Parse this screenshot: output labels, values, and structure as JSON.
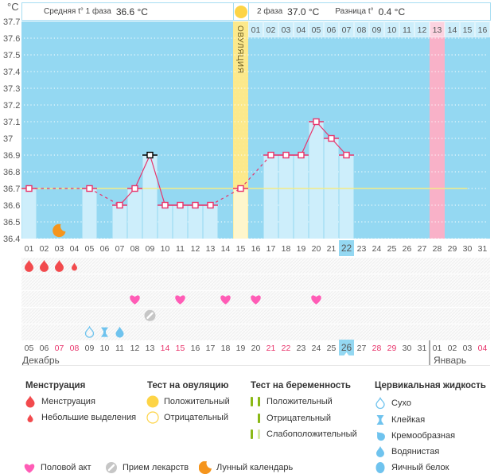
{
  "unit_label": "°C",
  "header": {
    "phase1_label": "Средняя t° 1 фаза",
    "phase1_value": "36.6 °C",
    "phase2_label": "2 фаза",
    "phase2_value": "37.0 °C",
    "diff_label": "Разница t°",
    "diff_value": "0.4 °C",
    "ovulation_icon": "sun-icon"
  },
  "chart_data": {
    "type": "bar",
    "title": "",
    "xlabel": "",
    "ylabel": "°C",
    "ylim": [
      36.4,
      37.7
    ],
    "grid": true,
    "legend": "bottom",
    "y_ticks": [
      "37.7",
      "37.6",
      "37.5",
      "37.4",
      "37.3",
      "37.2",
      "37.1",
      "37",
      "36.9",
      "36.8",
      "36.7",
      "36.6",
      "36.5",
      "36.4"
    ],
    "y_tick_values": [
      37.7,
      37.6,
      37.5,
      37.4,
      37.3,
      37.2,
      37.1,
      37.0,
      36.9,
      36.8,
      36.7,
      36.6,
      36.5,
      36.4
    ],
    "cycle_days": [
      "01",
      "02",
      "03",
      "04",
      "05",
      "06",
      "07",
      "08",
      "09",
      "10",
      "11",
      "12",
      "13",
      "14",
      "15",
      "16",
      "17",
      "18",
      "19",
      "20",
      "21",
      "22",
      "23",
      "24",
      "25",
      "26",
      "27",
      "28",
      "29",
      "30",
      "31"
    ],
    "temperatures": [
      36.7,
      null,
      null,
      null,
      36.7,
      null,
      36.6,
      36.7,
      36.9,
      36.6,
      36.6,
      36.6,
      36.6,
      null,
      36.7,
      null,
      36.9,
      36.9,
      36.9,
      37.1,
      37.0,
      36.9,
      null,
      null,
      null,
      null,
      null,
      null,
      null,
      null,
      null
    ],
    "coverline": 36.7,
    "coverline_end_day": 30,
    "ovulation_day": 15,
    "ovulation_label": "ОВУЛЯЦИЯ",
    "dpo_start_day": 16,
    "dpo_labels": [
      "01",
      "02",
      "03",
      "04",
      "05",
      "06",
      "07",
      "08",
      "09",
      "10",
      "11",
      "12",
      "13",
      "14",
      "15",
      "16"
    ],
    "highlighted_day": 28,
    "selected_day": 9,
    "current_day": 22
  },
  "moon_days": [
    3
  ],
  "event_rows": [
    {
      "type": "menstruation",
      "marks": [
        {
          "day": 1,
          "icon": "blood-drop-icon"
        },
        {
          "day": 2,
          "icon": "blood-drop-icon"
        },
        {
          "day": 3,
          "icon": "blood-drop-icon"
        },
        {
          "day": 4,
          "icon": "spotting-drop-icon"
        }
      ]
    },
    {
      "type": "tests",
      "marks": []
    },
    {
      "type": "intercourse",
      "marks": [
        {
          "day": 8,
          "icon": "heart-icon"
        },
        {
          "day": 11,
          "icon": "heart-icon"
        },
        {
          "day": 14,
          "icon": "heart-icon"
        },
        {
          "day": 16,
          "icon": "heart-icon"
        },
        {
          "day": 20,
          "icon": "heart-icon"
        }
      ]
    },
    {
      "type": "medication",
      "marks": [
        {
          "day": 9,
          "icon": "pill-icon"
        }
      ]
    },
    {
      "type": "cervical_fluid",
      "marks": [
        {
          "day": 5,
          "icon": "dry-drop-icon"
        },
        {
          "day": 6,
          "icon": "sticky-hourglass-icon"
        },
        {
          "day": 7,
          "icon": "watery-drop-icon"
        }
      ]
    }
  ],
  "calendar": {
    "dates": [
      {
        "label": "05",
        "weekend": false
      },
      {
        "label": "06",
        "weekend": false
      },
      {
        "label": "07",
        "weekend": true
      },
      {
        "label": "08",
        "weekend": true
      },
      {
        "label": "09",
        "weekend": false
      },
      {
        "label": "10",
        "weekend": false
      },
      {
        "label": "11",
        "weekend": false
      },
      {
        "label": "12",
        "weekend": false
      },
      {
        "label": "13",
        "weekend": false
      },
      {
        "label": "14",
        "weekend": true
      },
      {
        "label": "15",
        "weekend": true
      },
      {
        "label": "16",
        "weekend": false
      },
      {
        "label": "17",
        "weekend": false
      },
      {
        "label": "18",
        "weekend": false
      },
      {
        "label": "19",
        "weekend": false
      },
      {
        "label": "20",
        "weekend": false
      },
      {
        "label": "21",
        "weekend": true
      },
      {
        "label": "22",
        "weekend": true
      },
      {
        "label": "23",
        "weekend": false
      },
      {
        "label": "24",
        "weekend": false
      },
      {
        "label": "25",
        "weekend": false
      },
      {
        "label": "26",
        "weekend": false
      },
      {
        "label": "27",
        "weekend": false
      },
      {
        "label": "28",
        "weekend": true
      },
      {
        "label": "29",
        "weekend": true
      },
      {
        "label": "30",
        "weekend": false
      },
      {
        "label": "31",
        "weekend": false
      },
      {
        "label": "01",
        "weekend": false
      },
      {
        "label": "02",
        "weekend": false
      },
      {
        "label": "03",
        "weekend": false
      },
      {
        "label": "04",
        "weekend": true
      }
    ],
    "today_index": 21,
    "months": [
      {
        "label": "Декабрь",
        "start_index": 0
      },
      {
        "label": "Январь",
        "start_index": 27
      }
    ]
  },
  "legend": {
    "menstruation": {
      "title": "Менструация",
      "items": [
        {
          "icon": "blood-drop-icon",
          "label": "Менструация"
        },
        {
          "icon": "spotting-drop-icon",
          "label": "Небольшие выделения"
        }
      ]
    },
    "ovulation_test": {
      "title": "Тест на овуляцию",
      "items": [
        {
          "icon": "ovulation-positive-icon",
          "label": "Положительный"
        },
        {
          "icon": "ovulation-negative-icon",
          "label": "Отрицательный"
        }
      ]
    },
    "pregnancy_test": {
      "title": "Тест на беременность",
      "items": [
        {
          "icon": "pregnancy-positive-icon",
          "label": "Положительный"
        },
        {
          "icon": "pregnancy-negative-icon",
          "label": "Отрицательный"
        },
        {
          "icon": "pregnancy-faint-icon",
          "label": "Слабоположительный"
        }
      ]
    },
    "cervical_fluid": {
      "title": "Цервикальная жидкость",
      "items": [
        {
          "icon": "dry-drop-icon",
          "label": "Сухо"
        },
        {
          "icon": "sticky-hourglass-icon",
          "label": "Клейкая"
        },
        {
          "icon": "creamy-drop-icon",
          "label": "Кремообразная"
        },
        {
          "icon": "watery-drop-icon",
          "label": "Водянистая"
        },
        {
          "icon": "egg-white-icon",
          "label": "Яичный белок"
        }
      ]
    },
    "other": [
      {
        "icon": "heart-icon",
        "label": "Половой акт"
      },
      {
        "icon": "pill-icon",
        "label": "Прием лекарств"
      },
      {
        "icon": "moon-icon",
        "label": "Лунный календарь"
      }
    ]
  },
  "colors": {
    "chart_bg": "#94d8f2",
    "bar": "#cdeefb",
    "dpo_cell": "#cdeefb",
    "ovulation": "#fce98b",
    "ovulation_bar": "#fef6cc",
    "highlight": "#f9b1c8",
    "highlight_cell": "#fcd3e0",
    "temp_line": "#e8346b",
    "selected_marker": "#000000",
    "coverline": "#f3ec88",
    "axis_text": "#555555",
    "weekend_text": "#e8346b",
    "menstruation": "#f24a4d",
    "heart": "#ff5cb6",
    "pill": "#c6c6c6",
    "moon": "#f5951d",
    "cervical": "#6fc3ee",
    "ovulation_test": "#fdd446",
    "pregnancy_test": "#8ab816",
    "pregnancy_faint": "#d6e8a3"
  }
}
